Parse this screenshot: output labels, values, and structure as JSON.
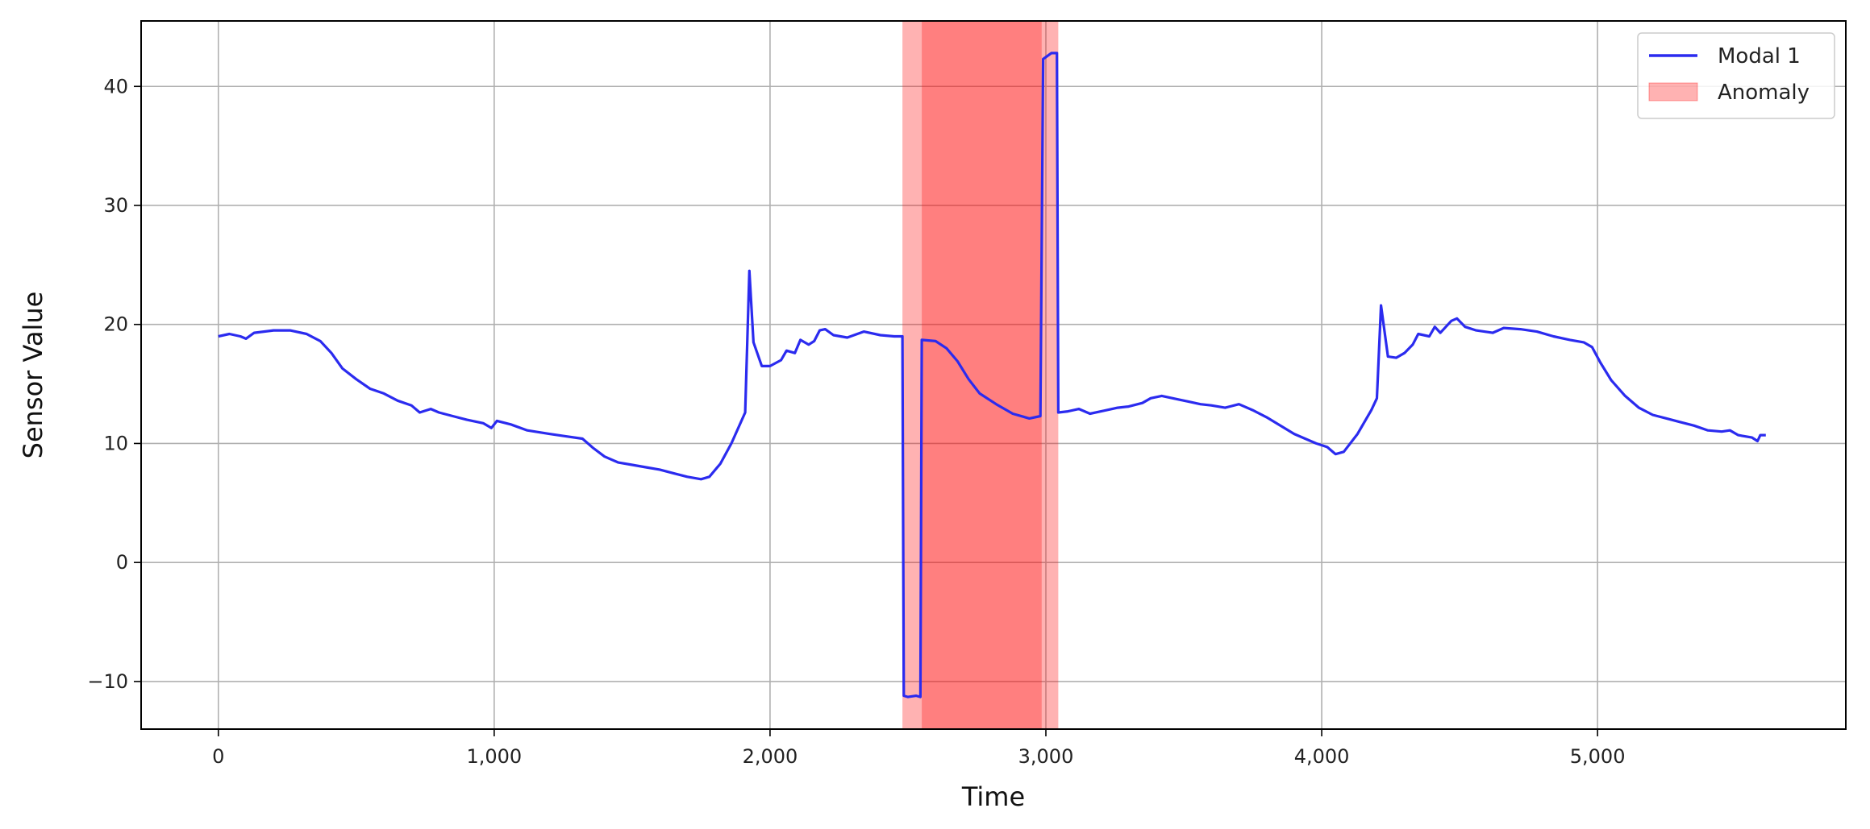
{
  "chart_data": {
    "type": "line",
    "title": "",
    "xlabel": "Time",
    "ylabel": "Sensor Value",
    "xlim": [
      -280,
      5900
    ],
    "ylim": [
      -14,
      45.5
    ],
    "x_ticks": [
      0,
      1000,
      2000,
      3000,
      4000,
      5000
    ],
    "x_tick_labels": [
      "0",
      "1,000",
      "2,000",
      "3,000",
      "4,000",
      "5,000"
    ],
    "y_ticks": [
      -10,
      0,
      10,
      20,
      30,
      40
    ],
    "y_tick_labels": [
      "−10",
      "0",
      "10",
      "20",
      "30",
      "40"
    ],
    "grid": true,
    "legend_position": "top-right",
    "series": [
      {
        "name": "Modal 1",
        "color": "#2b2bef",
        "points": [
          [
            0,
            19.0
          ],
          [
            40,
            19.2
          ],
          [
            80,
            19.0
          ],
          [
            100,
            18.8
          ],
          [
            130,
            19.3
          ],
          [
            200,
            19.5
          ],
          [
            260,
            19.5
          ],
          [
            320,
            19.2
          ],
          [
            370,
            18.6
          ],
          [
            410,
            17.6
          ],
          [
            450,
            16.3
          ],
          [
            500,
            15.4
          ],
          [
            550,
            14.6
          ],
          [
            600,
            14.2
          ],
          [
            650,
            13.6
          ],
          [
            700,
            13.2
          ],
          [
            730,
            12.6
          ],
          [
            770,
            12.9
          ],
          [
            800,
            12.6
          ],
          [
            850,
            12.3
          ],
          [
            900,
            12.0
          ],
          [
            960,
            11.7
          ],
          [
            990,
            11.3
          ],
          [
            1010,
            11.9
          ],
          [
            1060,
            11.6
          ],
          [
            1120,
            11.1
          ],
          [
            1200,
            10.8
          ],
          [
            1260,
            10.6
          ],
          [
            1320,
            10.4
          ],
          [
            1360,
            9.6
          ],
          [
            1400,
            8.9
          ],
          [
            1450,
            8.4
          ],
          [
            1500,
            8.2
          ],
          [
            1550,
            8.0
          ],
          [
            1600,
            7.8
          ],
          [
            1650,
            7.5
          ],
          [
            1700,
            7.2
          ],
          [
            1750,
            7.0
          ],
          [
            1780,
            7.2
          ],
          [
            1820,
            8.3
          ],
          [
            1860,
            10.0
          ],
          [
            1910,
            12.6
          ],
          [
            1925,
            24.5
          ],
          [
            1940,
            18.5
          ],
          [
            1970,
            16.5
          ],
          [
            2000,
            16.5
          ],
          [
            2040,
            17.0
          ],
          [
            2060,
            17.8
          ],
          [
            2090,
            17.6
          ],
          [
            2110,
            18.7
          ],
          [
            2140,
            18.3
          ],
          [
            2160,
            18.6
          ],
          [
            2180,
            19.5
          ],
          [
            2200,
            19.6
          ],
          [
            2230,
            19.1
          ],
          [
            2280,
            18.9
          ],
          [
            2340,
            19.4
          ],
          [
            2400,
            19.1
          ],
          [
            2450,
            19.0
          ],
          [
            2480,
            19.0
          ],
          [
            2485,
            -11.2
          ],
          [
            2500,
            -11.3
          ],
          [
            2530,
            -11.2
          ],
          [
            2545,
            -11.3
          ],
          [
            2550,
            18.7
          ],
          [
            2600,
            18.6
          ],
          [
            2640,
            18.0
          ],
          [
            2680,
            16.9
          ],
          [
            2720,
            15.4
          ],
          [
            2760,
            14.2
          ],
          [
            2820,
            13.3
          ],
          [
            2880,
            12.5
          ],
          [
            2940,
            12.1
          ],
          [
            2980,
            12.3
          ],
          [
            2990,
            42.3
          ],
          [
            3020,
            42.8
          ],
          [
            3040,
            42.8
          ],
          [
            3045,
            12.6
          ],
          [
            3080,
            12.7
          ],
          [
            3120,
            12.9
          ],
          [
            3160,
            12.5
          ],
          [
            3200,
            12.7
          ],
          [
            3260,
            13.0
          ],
          [
            3300,
            13.1
          ],
          [
            3350,
            13.4
          ],
          [
            3380,
            13.8
          ],
          [
            3420,
            14.0
          ],
          [
            3480,
            13.7
          ],
          [
            3520,
            13.5
          ],
          [
            3560,
            13.3
          ],
          [
            3600,
            13.2
          ],
          [
            3650,
            13.0
          ],
          [
            3700,
            13.3
          ],
          [
            3750,
            12.8
          ],
          [
            3800,
            12.2
          ],
          [
            3850,
            11.5
          ],
          [
            3900,
            10.8
          ],
          [
            3950,
            10.3
          ],
          [
            3980,
            10.0
          ],
          [
            4020,
            9.7
          ],
          [
            4050,
            9.1
          ],
          [
            4080,
            9.3
          ],
          [
            4130,
            10.8
          ],
          [
            4180,
            12.8
          ],
          [
            4200,
            13.8
          ],
          [
            4215,
            21.6
          ],
          [
            4240,
            17.3
          ],
          [
            4270,
            17.2
          ],
          [
            4300,
            17.6
          ],
          [
            4330,
            18.3
          ],
          [
            4350,
            19.2
          ],
          [
            4390,
            19.0
          ],
          [
            4410,
            19.8
          ],
          [
            4430,
            19.3
          ],
          [
            4450,
            19.8
          ],
          [
            4470,
            20.3
          ],
          [
            4490,
            20.5
          ],
          [
            4520,
            19.8
          ],
          [
            4560,
            19.5
          ],
          [
            4620,
            19.3
          ],
          [
            4660,
            19.7
          ],
          [
            4720,
            19.6
          ],
          [
            4780,
            19.4
          ],
          [
            4840,
            19.0
          ],
          [
            4900,
            18.7
          ],
          [
            4950,
            18.5
          ],
          [
            4980,
            18.1
          ],
          [
            5010,
            16.8
          ],
          [
            5050,
            15.3
          ],
          [
            5100,
            14.0
          ],
          [
            5150,
            13.0
          ],
          [
            5200,
            12.4
          ],
          [
            5250,
            12.1
          ],
          [
            5300,
            11.8
          ],
          [
            5350,
            11.5
          ],
          [
            5400,
            11.1
          ],
          [
            5450,
            11.0
          ],
          [
            5480,
            11.1
          ],
          [
            5510,
            10.7
          ],
          [
            5560,
            10.5
          ],
          [
            5580,
            10.2
          ],
          [
            5590,
            10.7
          ],
          [
            5610,
            10.7
          ]
        ]
      }
    ],
    "anomaly": {
      "name": "Anomaly",
      "color": "#ff0000",
      "regions": [
        {
          "x_start": 2480,
          "x_end": 2550,
          "opacity": 0.3
        },
        {
          "x_start": 2550,
          "x_end": 2985,
          "opacity": 0.5
        },
        {
          "x_start": 2985,
          "x_end": 3045,
          "opacity": 0.3
        }
      ]
    }
  }
}
